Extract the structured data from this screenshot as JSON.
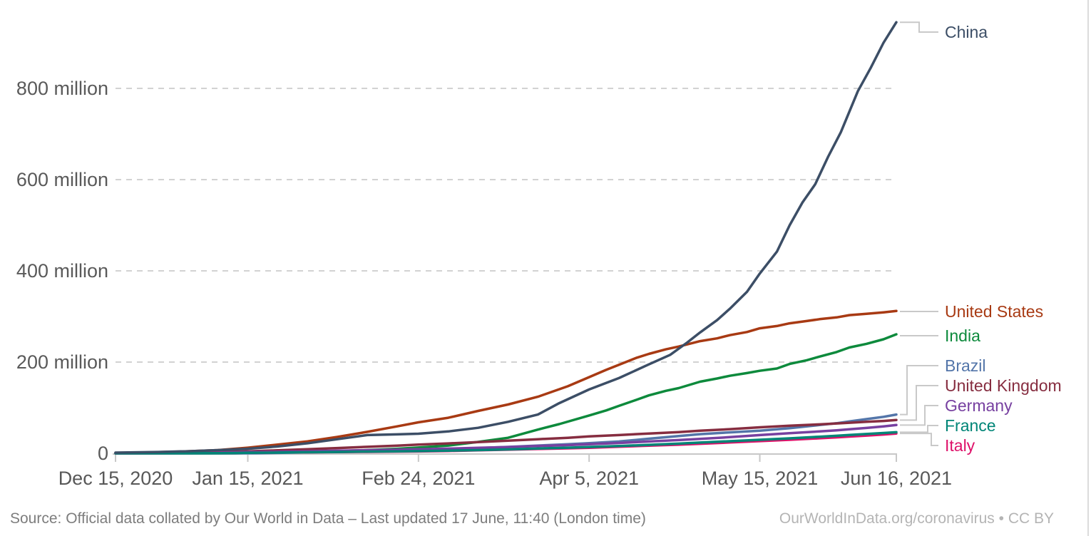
{
  "footer": {
    "source": "Source: Official data collated by Our World in Data – Last updated 17 June, 11:40 (London time)",
    "link": "OurWorldInData.org/coronavirus • CC BY"
  },
  "chart_data": {
    "type": "line",
    "title": "",
    "xlabel": "",
    "ylabel": "",
    "value_unit": "million",
    "grid": "dashed-horizontal",
    "legend_position": "right-edge-labels",
    "x_range_days": [
      0,
      183
    ],
    "ylim": [
      0,
      960
    ],
    "y_ticks": [
      {
        "value": 0,
        "label": "0"
      },
      {
        "value": 200,
        "label": "200 million"
      },
      {
        "value": 400,
        "label": "400 million"
      },
      {
        "value": 600,
        "label": "600 million"
      },
      {
        "value": 800,
        "label": "800 million"
      }
    ],
    "x_ticks": [
      {
        "day": 0,
        "label": "Dec 15, 2020"
      },
      {
        "day": 31,
        "label": "Jan 15, 2021"
      },
      {
        "day": 71,
        "label": "Feb 24, 2021"
      },
      {
        "day": 111,
        "label": "Apr 5, 2021"
      },
      {
        "day": 151,
        "label": "May 15, 2021"
      },
      {
        "day": 183,
        "label": "Jun 16, 2021"
      }
    ],
    "series": [
      {
        "name": "China",
        "color": "#3C4E66",
        "z": 1,
        "label_y": 45,
        "elbow_x": 1289,
        "points": [
          [
            0,
            1.5
          ],
          [
            10,
            3
          ],
          [
            17,
            4.5
          ],
          [
            24,
            7
          ],
          [
            31,
            10
          ],
          [
            38,
            15
          ],
          [
            45,
            22
          ],
          [
            52,
            31
          ],
          [
            59,
            40
          ],
          [
            66,
            41.5
          ],
          [
            71,
            43
          ],
          [
            78,
            48
          ],
          [
            85,
            56
          ],
          [
            92,
            69
          ],
          [
            99,
            85
          ],
          [
            104,
            110
          ],
          [
            111,
            140
          ],
          [
            118,
            165
          ],
          [
            125,
            195
          ],
          [
            130,
            216
          ],
          [
            134,
            243
          ],
          [
            137,
            265
          ],
          [
            141,
            292
          ],
          [
            144,
            317
          ],
          [
            148,
            354
          ],
          [
            151,
            394
          ],
          [
            155,
            442
          ],
          [
            158,
            500
          ],
          [
            161,
            550
          ],
          [
            164,
            590
          ],
          [
            167,
            650
          ],
          [
            170,
            704
          ],
          [
            174,
            794
          ],
          [
            177,
            845
          ],
          [
            180,
            900
          ],
          [
            183,
            945
          ]
        ]
      },
      {
        "name": "United States",
        "color": "#A83A13",
        "z": 0,
        "label_y": 437,
        "elbow_x": 1280,
        "points": [
          [
            0,
            0.6
          ],
          [
            7,
            1.9
          ],
          [
            14,
            3.5
          ],
          [
            17,
            4.6
          ],
          [
            24,
            7
          ],
          [
            31,
            12.3
          ],
          [
            38,
            19.1
          ],
          [
            45,
            26.2
          ],
          [
            52,
            36
          ],
          [
            59,
            47
          ],
          [
            66,
            59
          ],
          [
            71,
            68
          ],
          [
            78,
            78
          ],
          [
            85,
            93
          ],
          [
            92,
            107
          ],
          [
            99,
            124
          ],
          [
            106,
            147
          ],
          [
            111,
            167
          ],
          [
            115,
            183
          ],
          [
            118,
            194
          ],
          [
            122,
            209
          ],
          [
            125,
            218
          ],
          [
            129,
            228
          ],
          [
            132,
            234
          ],
          [
            137,
            246
          ],
          [
            141,
            252
          ],
          [
            144,
            259
          ],
          [
            148,
            266
          ],
          [
            151,
            274
          ],
          [
            155,
            279
          ],
          [
            158,
            285
          ],
          [
            162,
            290
          ],
          [
            165,
            294
          ],
          [
            169,
            298
          ],
          [
            172,
            303
          ],
          [
            176,
            306
          ],
          [
            180,
            309
          ],
          [
            183,
            312
          ]
        ]
      },
      {
        "name": "India",
        "color": "#0D8A3C",
        "z": 0,
        "label_y": 471,
        "elbow_x": 1280,
        "points": [
          [
            0,
            0
          ],
          [
            28,
            0
          ],
          [
            31,
            0.7
          ],
          [
            38,
            2.3
          ],
          [
            45,
            3.5
          ],
          [
            52,
            5
          ],
          [
            59,
            7.1
          ],
          [
            66,
            10
          ],
          [
            71,
            12.6
          ],
          [
            78,
            17
          ],
          [
            85,
            25
          ],
          [
            92,
            34
          ],
          [
            99,
            52
          ],
          [
            104,
            64
          ],
          [
            111,
            83
          ],
          [
            115,
            94
          ],
          [
            118,
            104
          ],
          [
            122,
            117
          ],
          [
            125,
            127
          ],
          [
            129,
            137
          ],
          [
            132,
            143
          ],
          [
            137,
            157
          ],
          [
            141,
            164
          ],
          [
            144,
            170
          ],
          [
            148,
            176
          ],
          [
            151,
            181
          ],
          [
            155,
            186
          ],
          [
            158,
            196
          ],
          [
            162,
            204
          ],
          [
            165,
            212
          ],
          [
            169,
            222
          ],
          [
            172,
            232
          ],
          [
            176,
            240
          ],
          [
            180,
            250
          ],
          [
            183,
            261
          ]
        ]
      },
      {
        "name": "Brazil",
        "color": "#5375A9",
        "z": 0,
        "label_y": 513,
        "elbow_x": 1272,
        "points": [
          [
            0,
            0
          ],
          [
            33,
            0.2
          ],
          [
            38,
            1
          ],
          [
            45,
            2.2
          ],
          [
            52,
            3.6
          ],
          [
            59,
            5
          ],
          [
            66,
            6.9
          ],
          [
            71,
            8.3
          ],
          [
            78,
            9.7
          ],
          [
            85,
            11.6
          ],
          [
            92,
            14
          ],
          [
            99,
            17
          ],
          [
            106,
            20
          ],
          [
            111,
            22.3
          ],
          [
            118,
            26
          ],
          [
            125,
            32
          ],
          [
            132,
            38
          ],
          [
            137,
            42
          ],
          [
            144,
            46
          ],
          [
            151,
            49.5
          ],
          [
            158,
            55
          ],
          [
            165,
            62
          ],
          [
            169,
            66
          ],
          [
            172,
            70
          ],
          [
            176,
            75
          ],
          [
            180,
            80
          ],
          [
            183,
            85
          ]
        ]
      },
      {
        "name": "United Kingdom",
        "color": "#862D40",
        "z": 0,
        "label_y": 541,
        "elbow_x": 1285,
        "points": [
          [
            0,
            1
          ],
          [
            7,
            1.5
          ],
          [
            14,
            2.4
          ],
          [
            17,
            2.8
          ],
          [
            24,
            3.3
          ],
          [
            31,
            4.3
          ],
          [
            38,
            6.6
          ],
          [
            45,
            8.9
          ],
          [
            52,
            11.5
          ],
          [
            59,
            14.2
          ],
          [
            66,
            16.9
          ],
          [
            71,
            19
          ],
          [
            78,
            21.7
          ],
          [
            85,
            24.5
          ],
          [
            92,
            27.6
          ],
          [
            99,
            30.9
          ],
          [
            106,
            34
          ],
          [
            111,
            37
          ],
          [
            118,
            40
          ],
          [
            125,
            43.5
          ],
          [
            132,
            46.5
          ],
          [
            137,
            49.5
          ],
          [
            144,
            53
          ],
          [
            151,
            57
          ],
          [
            158,
            60.5
          ],
          [
            165,
            63.5
          ],
          [
            169,
            65.5
          ],
          [
            172,
            67
          ],
          [
            176,
            69
          ],
          [
            180,
            71
          ],
          [
            183,
            72.9
          ]
        ]
      },
      {
        "name": "Germany",
        "color": "#7740A0",
        "z": 0,
        "label_y": 569,
        "elbow_x": 1297,
        "points": [
          [
            0,
            0
          ],
          [
            10,
            0.5
          ],
          [
            17,
            1.2
          ],
          [
            24,
            1.9
          ],
          [
            31,
            2.7
          ],
          [
            38,
            3.6
          ],
          [
            45,
            4.6
          ],
          [
            52,
            5.6
          ],
          [
            59,
            6.8
          ],
          [
            66,
            8
          ],
          [
            71,
            8.8
          ],
          [
            78,
            10.3
          ],
          [
            85,
            12
          ],
          [
            92,
            13.8
          ],
          [
            99,
            15.9
          ],
          [
            106,
            18
          ],
          [
            111,
            20
          ],
          [
            118,
            22.7
          ],
          [
            125,
            25.9
          ],
          [
            132,
            29
          ],
          [
            137,
            31.6
          ],
          [
            144,
            35.5
          ],
          [
            151,
            40
          ],
          [
            158,
            44
          ],
          [
            165,
            48
          ],
          [
            169,
            50.5
          ],
          [
            172,
            52.8
          ],
          [
            176,
            55.6
          ],
          [
            180,
            59
          ],
          [
            183,
            62
          ]
        ]
      },
      {
        "name": "France",
        "color": "#008577",
        "z": 0.5,
        "label_y": 597,
        "elbow_x": 1301,
        "points": [
          [
            0,
            0
          ],
          [
            17,
            0.1
          ],
          [
            24,
            0.5
          ],
          [
            31,
            1.1
          ],
          [
            38,
            1.7
          ],
          [
            45,
            2.3
          ],
          [
            52,
            3
          ],
          [
            59,
            3.7
          ],
          [
            66,
            4.3
          ],
          [
            71,
            4.8
          ],
          [
            78,
            5.8
          ],
          [
            85,
            7.1
          ],
          [
            92,
            8.6
          ],
          [
            99,
            10.7
          ],
          [
            106,
            12.4
          ],
          [
            111,
            13.9
          ],
          [
            118,
            16
          ],
          [
            125,
            18.6
          ],
          [
            132,
            21.2
          ],
          [
            137,
            23.6
          ],
          [
            144,
            26.5
          ],
          [
            151,
            29.7
          ],
          [
            158,
            32.8
          ],
          [
            165,
            36.4
          ],
          [
            169,
            38.5
          ],
          [
            172,
            40.2
          ],
          [
            176,
            42.3
          ],
          [
            180,
            44.5
          ],
          [
            183,
            46.2
          ]
        ]
      },
      {
        "name": "Italy",
        "color": "#DE1169",
        "z": 0,
        "label_y": 625,
        "elbow_x": 1306,
        "points": [
          [
            0,
            0
          ],
          [
            10,
            0.1
          ],
          [
            17,
            0.5
          ],
          [
            24,
            0.9
          ],
          [
            31,
            1.3
          ],
          [
            38,
            1.8
          ],
          [
            45,
            2.2
          ],
          [
            52,
            2.7
          ],
          [
            59,
            3.2
          ],
          [
            66,
            3.7
          ],
          [
            71,
            4.1
          ],
          [
            78,
            5.2
          ],
          [
            85,
            6.6
          ],
          [
            92,
            7.9
          ],
          [
            99,
            9.6
          ],
          [
            106,
            11
          ],
          [
            111,
            12
          ],
          [
            118,
            14.3
          ],
          [
            125,
            16.7
          ],
          [
            132,
            18.9
          ],
          [
            137,
            20.9
          ],
          [
            144,
            23.7
          ],
          [
            151,
            26.7
          ],
          [
            158,
            29.7
          ],
          [
            165,
            33
          ],
          [
            169,
            35
          ],
          [
            172,
            36.7
          ],
          [
            176,
            38.9
          ],
          [
            180,
            41.3
          ],
          [
            183,
            43.5
          ]
        ]
      }
    ]
  }
}
